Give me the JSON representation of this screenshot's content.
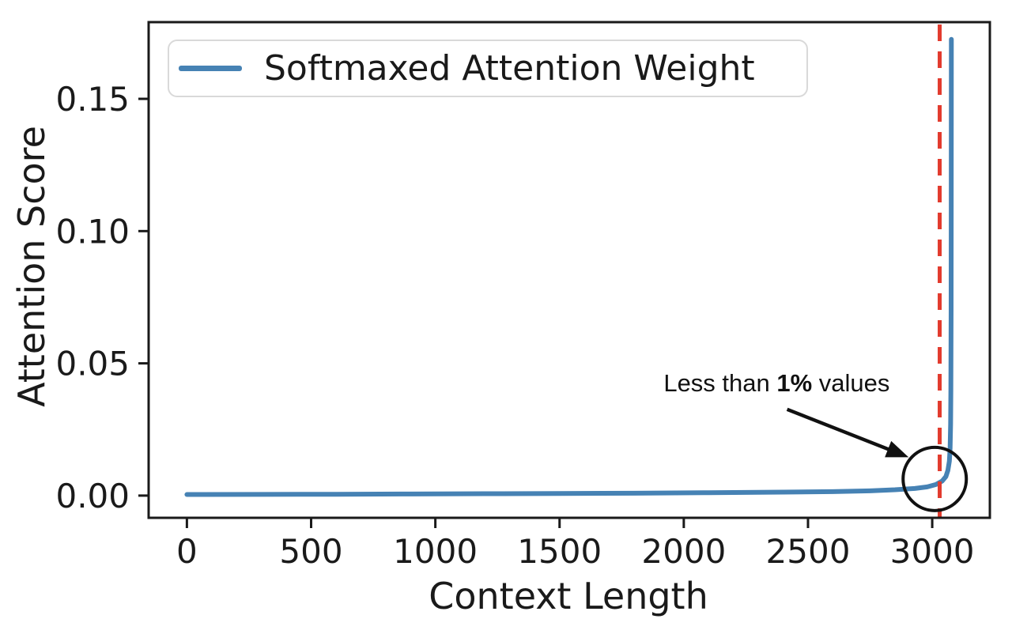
{
  "chart_data": {
    "type": "line",
    "title": "",
    "xlabel": "Context Length",
    "ylabel": "Attention Score",
    "xlim": [
      -154,
      3232
    ],
    "ylim": [
      -0.0084,
      0.179
    ],
    "grid": false,
    "x_ticks": [
      {
        "value": 0,
        "label": "0"
      },
      {
        "value": 500,
        "label": "500"
      },
      {
        "value": 1000,
        "label": "1000"
      },
      {
        "value": 1500,
        "label": "1500"
      },
      {
        "value": 2000,
        "label": "2000"
      },
      {
        "value": 2500,
        "label": "2500"
      },
      {
        "value": 3000,
        "label": "3000"
      }
    ],
    "y_ticks": [
      {
        "value": 0.0,
        "label": "0.00"
      },
      {
        "value": 0.05,
        "label": "0.05"
      },
      {
        "value": 0.1,
        "label": "0.10"
      },
      {
        "value": 0.15,
        "label": "0.15"
      }
    ],
    "legend": {
      "label": "Softmaxed Attention Weight",
      "position": "upper left"
    },
    "series": [
      {
        "name": "Softmaxed Attention Weight",
        "color": "#4682b4",
        "points": [
          [
            0,
            0.0004
          ],
          [
            300,
            0.00045
          ],
          [
            600,
            0.0005
          ],
          [
            900,
            0.0006
          ],
          [
            1200,
            0.0007
          ],
          [
            1500,
            0.0008
          ],
          [
            1800,
            0.0009
          ],
          [
            2100,
            0.0011
          ],
          [
            2400,
            0.0013
          ],
          [
            2600,
            0.0015
          ],
          [
            2750,
            0.0018
          ],
          [
            2850,
            0.0022
          ],
          [
            2930,
            0.0027
          ],
          [
            2980,
            0.0033
          ],
          [
            3015,
            0.0042
          ],
          [
            3040,
            0.0055
          ],
          [
            3055,
            0.0072
          ],
          [
            3063,
            0.0095
          ],
          [
            3069,
            0.013
          ],
          [
            3072,
            0.018
          ],
          [
            3074,
            0.027
          ],
          [
            3075,
            0.04
          ],
          [
            3076,
            0.07
          ],
          [
            3076.5,
            0.11
          ],
          [
            3077,
            0.1725
          ]
        ]
      }
    ],
    "vline": {
      "x": 3030,
      "color": "#e23b2e",
      "style": "dashed"
    },
    "annotation": {
      "text_prefix": "Less than ",
      "text_bold": "1%",
      "text_suffix": " values",
      "text_pos": [
        2374,
        0.0425
      ],
      "arrow_from": [
        2416,
        0.0326
      ],
      "arrow_to": [
        2905,
        0.0145
      ],
      "circle_center": [
        3010,
        0.0063
      ],
      "circle_radius_px": 40
    },
    "colors": {
      "axes": "#1a1a1a",
      "text": "#1a1a1a",
      "annotation": "#111111"
    }
  }
}
